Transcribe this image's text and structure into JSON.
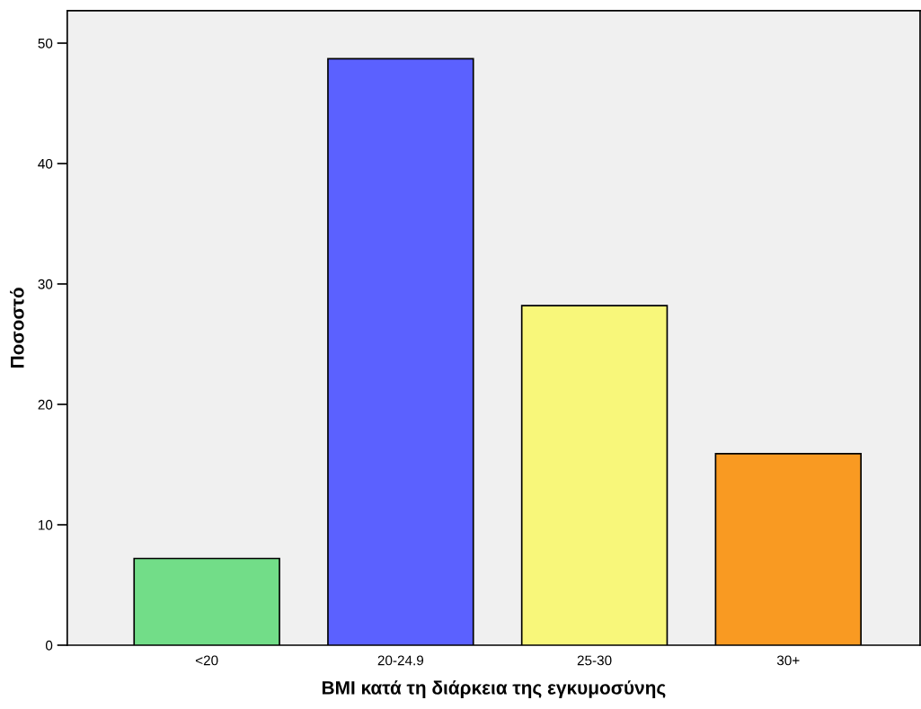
{
  "chart_data": {
    "type": "bar",
    "xlabel": "BMI κατά τη διάρκεια της εγκυμοσύνης",
    "ylabel": "Ποσοστό",
    "categories": [
      "<20",
      "20-24.9",
      "25-30",
      "30+"
    ],
    "values": [
      7.2,
      48.7,
      28.2,
      15.9
    ],
    "colors": [
      "#72dd88",
      "#5b61ff",
      "#f8f77a",
      "#f99a22"
    ],
    "ylim": [
      0,
      52.7
    ],
    "yticks": [
      0,
      10,
      20,
      30,
      40,
      50
    ],
    "grid": false
  }
}
